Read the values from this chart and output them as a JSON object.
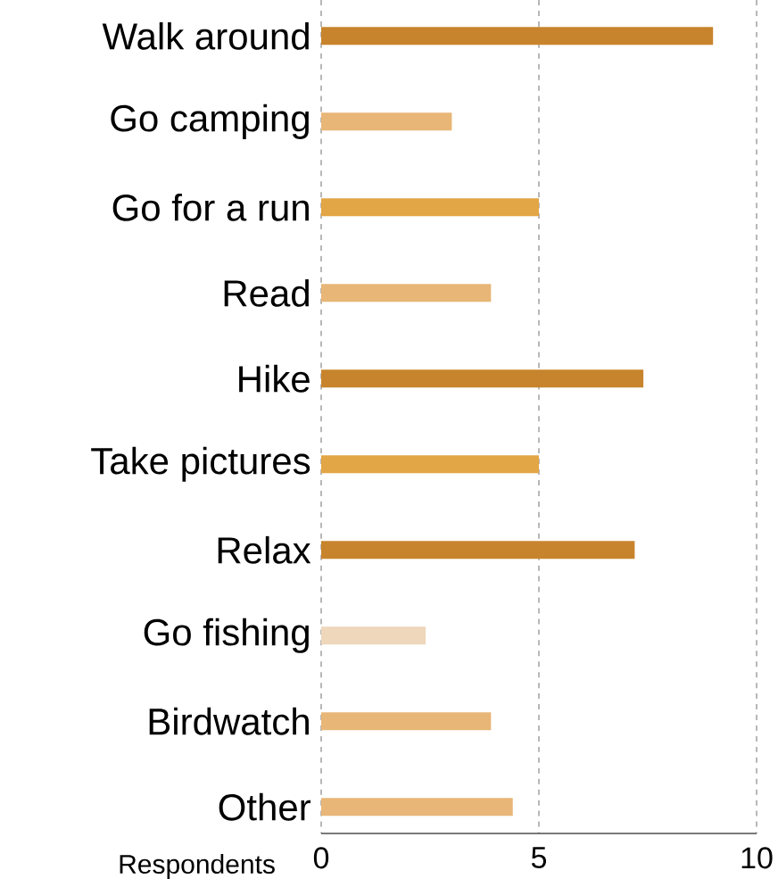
{
  "chart_data": {
    "type": "bar",
    "orientation": "horizontal",
    "xlabel": "Respondents",
    "categories": [
      "Walk around",
      "Go camping",
      "Go for a run",
      "Read",
      "Hike",
      "Take pictures",
      "Relax",
      "Go fishing",
      "Birdwatch",
      "Other"
    ],
    "values": [
      9.0,
      3.0,
      5.0,
      3.9,
      7.4,
      5.0,
      7.2,
      2.4,
      3.9,
      4.4
    ],
    "colors": [
      "#c8842c",
      "#e8b677",
      "#e2a646",
      "#e8b677",
      "#c8842c",
      "#e2a646",
      "#c8842c",
      "#eed7bb",
      "#e8b677",
      "#e8b677"
    ],
    "xlim": [
      0,
      10
    ],
    "xticks": [
      0,
      5,
      10
    ],
    "grid": "x"
  }
}
